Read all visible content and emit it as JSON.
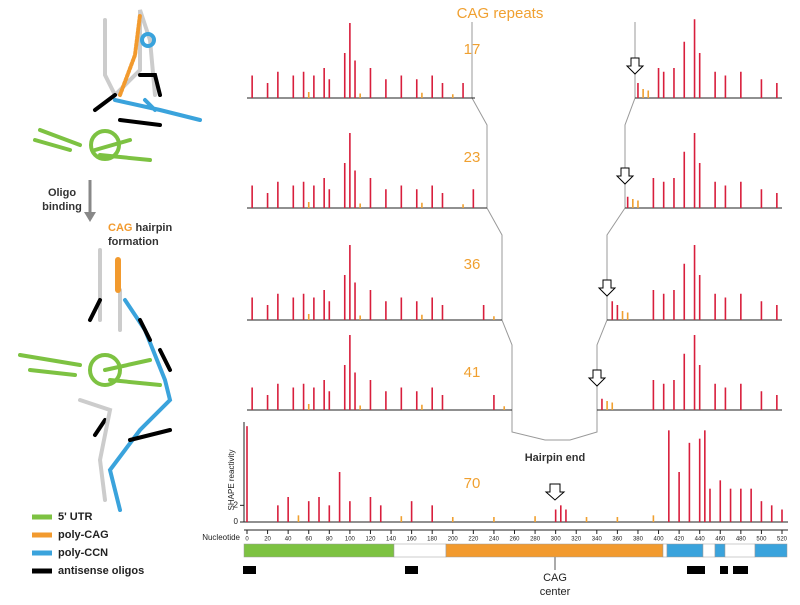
{
  "chart_data": {
    "type": "bar",
    "title": "CAG repeats",
    "y_label": "SHAPE reactivity",
    "x_label": "Nucleotide",
    "ylim": [
      0,
      12
    ],
    "yticks": [
      0,
      2
    ],
    "xticks": [
      0,
      20,
      40,
      60,
      80,
      100,
      120,
      140,
      160,
      180,
      200,
      220,
      240,
      260,
      280,
      300,
      320,
      340,
      360,
      380,
      400,
      420,
      440,
      460,
      480,
      500,
      520
    ],
    "panels": [
      {
        "label": "17",
        "series": [
          {
            "color": "#d81e3c",
            "x": [
              5,
              20,
              30,
              45,
              55,
              65,
              75,
              80,
              95,
              100,
              105,
              120,
              135,
              150,
              165,
              180,
              190,
              210,
              380,
              400,
              405,
              415,
              425,
              435,
              440,
              455,
              465,
              480,
              500,
              515
            ],
            "values": [
              3,
              2,
              3.5,
              3,
              3.5,
              3,
              4,
              2.5,
              6,
              10,
              5,
              4,
              2.5,
              3,
              2.5,
              3,
              2,
              2,
              2,
              4,
              3.5,
              4,
              7.5,
              10.5,
              6,
              3.5,
              3,
              3.5,
              2.5,
              2
            ]
          },
          {
            "color": "#f0a030",
            "x": [
              60,
              110,
              170,
              200,
              385,
              390
            ],
            "values": [
              0.8,
              0.6,
              0.7,
              0.5,
              1.2,
              1
            ]
          }
        ]
      },
      {
        "label": "23",
        "series": [
          {
            "color": "#d81e3c",
            "x": [
              5,
              20,
              30,
              45,
              55,
              65,
              75,
              80,
              95,
              100,
              105,
              120,
              135,
              150,
              165,
              180,
              190,
              220,
              370,
              395,
              405,
              415,
              425,
              435,
              440,
              455,
              465,
              480,
              500,
              515
            ],
            "values": [
              3,
              2,
              3.5,
              3,
              3.5,
              3,
              4,
              2.5,
              6,
              10,
              5,
              4,
              2.5,
              3,
              2.5,
              3,
              2,
              2.5,
              1.5,
              4,
              3.5,
              4,
              7.5,
              10,
              6,
              3.5,
              3,
              3.5,
              2.5,
              2
            ]
          },
          {
            "color": "#f0a030",
            "x": [
              60,
              110,
              170,
              210,
              375,
              380
            ],
            "values": [
              0.8,
              0.6,
              0.7,
              0.5,
              1.2,
              1
            ]
          }
        ]
      },
      {
        "label": "36",
        "series": [
          {
            "color": "#d81e3c",
            "x": [
              5,
              20,
              30,
              45,
              55,
              65,
              75,
              80,
              95,
              100,
              105,
              120,
              135,
              150,
              165,
              180,
              190,
              230,
              355,
              360,
              395,
              405,
              415,
              425,
              435,
              440,
              455,
              465,
              480,
              500,
              515
            ],
            "values": [
              3,
              2,
              3.5,
              3,
              3.5,
              3,
              4,
              2.5,
              6,
              10,
              5,
              4,
              2.5,
              3,
              2.5,
              3,
              2,
              2,
              2.5,
              2,
              4,
              3.5,
              4,
              7.5,
              10,
              6,
              3.5,
              3,
              3.5,
              2.5,
              2
            ]
          },
          {
            "color": "#f0a030",
            "x": [
              60,
              110,
              170,
              240,
              365,
              370
            ],
            "values": [
              0.8,
              0.6,
              0.7,
              0.5,
              1.2,
              1
            ]
          }
        ]
      },
      {
        "label": "41",
        "series": [
          {
            "color": "#d81e3c",
            "x": [
              5,
              20,
              30,
              45,
              55,
              65,
              75,
              80,
              95,
              100,
              105,
              120,
              135,
              150,
              165,
              180,
              190,
              240,
              345,
              395,
              405,
              415,
              425,
              435,
              440,
              455,
              465,
              480,
              500,
              515
            ],
            "values": [
              3,
              2,
              3.5,
              3,
              3.5,
              3,
              4,
              2.5,
              6,
              10,
              5,
              4,
              2.5,
              3,
              2.5,
              3,
              2,
              2,
              1.5,
              4,
              3.5,
              4,
              7.5,
              10,
              6,
              3.5,
              3,
              3.5,
              2.5,
              2
            ]
          },
          {
            "color": "#f0a030",
            "x": [
              60,
              110,
              170,
              250,
              350,
              355
            ],
            "values": [
              0.8,
              0.6,
              0.7,
              0.5,
              1.2,
              1
            ]
          }
        ]
      },
      {
        "label": "70",
        "series": [
          {
            "color": "#d81e3c",
            "x": [
              0,
              30,
              40,
              60,
              70,
              80,
              90,
              100,
              120,
              130,
              160,
              180,
              300,
              305,
              310,
              410,
              420,
              430,
              440,
              445,
              450,
              460,
              470,
              480,
              490,
              500,
              510,
              520
            ],
            "values": [
              11.5,
              2,
              3,
              2.5,
              3,
              2,
              6,
              2.5,
              3,
              2,
              2.5,
              2,
              1.5,
              2,
              1.5,
              11,
              6,
              9.5,
              10,
              11,
              4,
              5,
              4,
              4,
              4,
              2.5,
              2,
              1.5
            ]
          },
          {
            "color": "#f0a030",
            "x": [
              50,
              150,
              200,
              240,
              280,
              330,
              360,
              395
            ],
            "values": [
              0.8,
              0.7,
              0.6,
              0.6,
              0.7,
              0.6,
              0.6,
              0.8
            ]
          }
        ]
      }
    ],
    "annotation": "Hairpin end",
    "center_label": [
      "CAG",
      "center"
    ],
    "step_labels": {
      "oligo": [
        "Oligo",
        "binding"
      ],
      "hairpin": {
        "highlight": "CAG",
        "rest": "hairpin",
        "line2": "formation"
      }
    },
    "legend": [
      {
        "name": "5' UTR",
        "color": "#7dc242"
      },
      {
        "name": "poly-CAG",
        "color": "#f29a2e"
      },
      {
        "name": "poly-CCN",
        "color": "#3aa3dc"
      },
      {
        "name": "antisense oligos",
        "color": "#000000"
      }
    ]
  }
}
